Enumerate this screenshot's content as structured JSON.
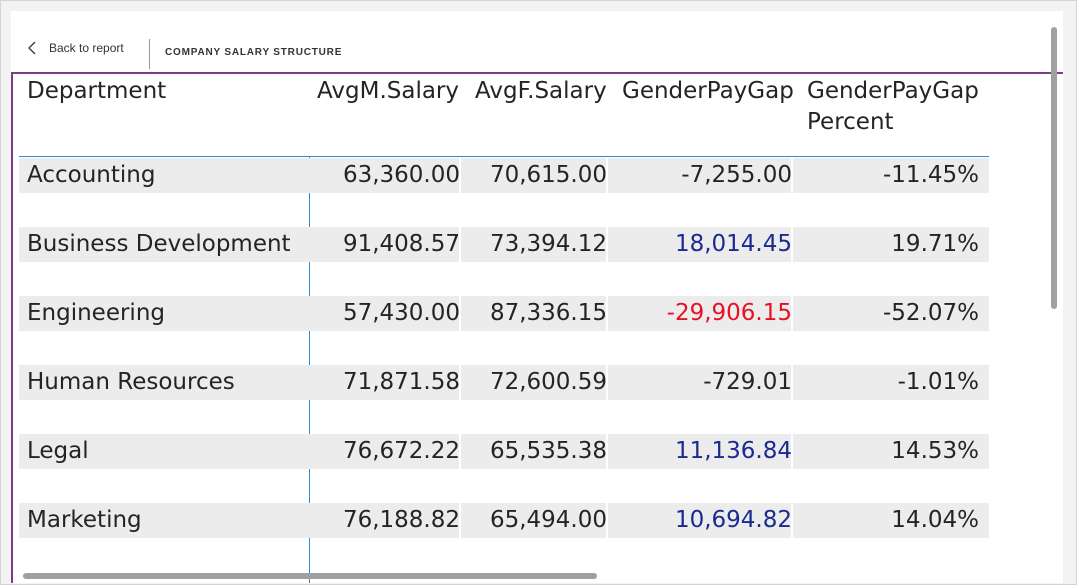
{
  "header": {
    "back_label": "Back to report",
    "title": "COMPANY SALARY STRUCTURE"
  },
  "table": {
    "columns": {
      "department": "Department",
      "avg_m": "AvgM.Salary",
      "avg_f": "AvgF.Salary",
      "gap": "GenderPayGap",
      "gap_pct_line1": "GenderPayGap",
      "gap_pct_line2": "Percent"
    },
    "rows": [
      {
        "department": "Accounting",
        "avg_m": "63,360.00",
        "avg_f": "70,615.00",
        "gap": "-7,255.00",
        "gap_pct": "-11.45%",
        "gap_color": "#252423"
      },
      {
        "department": "Business Development",
        "avg_m": "91,408.57",
        "avg_f": "73,394.12",
        "gap": "18,014.45",
        "gap_pct": "19.71%",
        "gap_color": "#1a2a8f"
      },
      {
        "department": "Engineering",
        "avg_m": "57,430.00",
        "avg_f": "87,336.15",
        "gap": "-29,906.15",
        "gap_pct": "-52.07%",
        "gap_color": "#e81123"
      },
      {
        "department": "Human Resources",
        "avg_m": "71,871.58",
        "avg_f": "72,600.59",
        "gap": "-729.01",
        "gap_pct": "-1.01%",
        "gap_color": "#252423"
      },
      {
        "department": "Legal",
        "avg_m": "76,672.22",
        "avg_f": "65,535.38",
        "gap": "11,136.84",
        "gap_pct": "14.53%",
        "gap_color": "#1a2a8f"
      },
      {
        "department": "Marketing",
        "avg_m": "76,188.82",
        "avg_f": "65,494.00",
        "gap": "10,694.82",
        "gap_pct": "14.04%",
        "gap_color": "#1a2a8f"
      }
    ]
  },
  "colors": {
    "accent_purple": "#7a3d86",
    "grid_blue": "#2f8ad3",
    "positive_gap": "#1a2a8f",
    "negative_gap_highlight": "#e81123"
  }
}
